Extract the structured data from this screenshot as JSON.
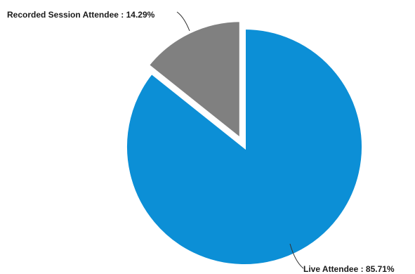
{
  "chart_data": {
    "type": "pie",
    "slices": [
      {
        "name": "Live Attendee",
        "value": 85.71,
        "label": "Live Attendee  : 85.71%",
        "color": "#0C8FD6"
      },
      {
        "name": "Recorded Session Attendee",
        "value": 14.29,
        "label": "Recorded Session Attendee : 14.29%",
        "color": "#808080"
      }
    ],
    "exploded_slice": "Recorded Session Attendee",
    "slice_outline_color": "#ffffff",
    "legend": "none"
  }
}
